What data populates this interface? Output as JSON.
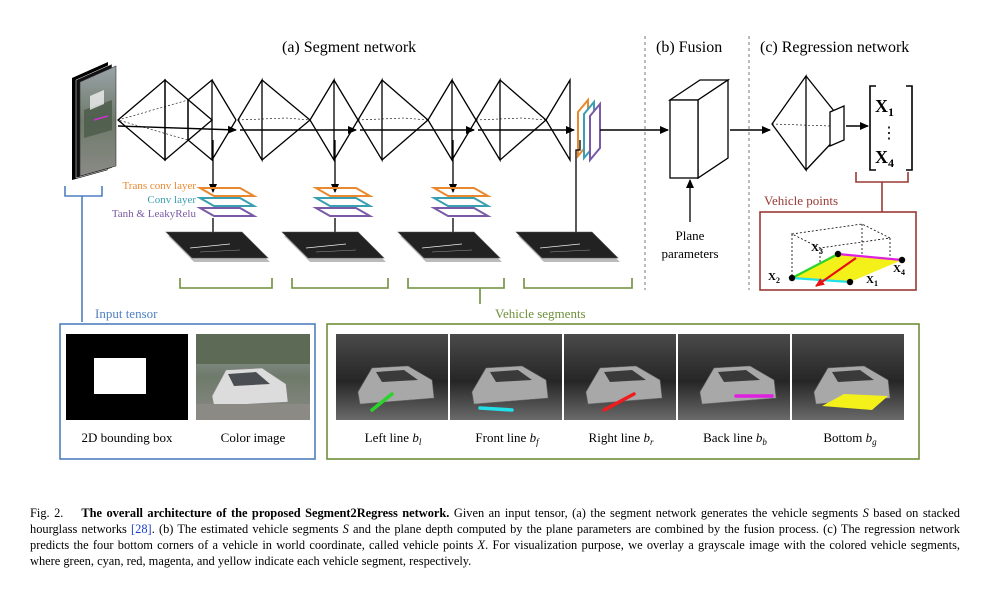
{
  "headers": {
    "segment": "(a) Segment network",
    "fusion": "(b) Fusion",
    "regression": "(c) Regression network"
  },
  "legend": {
    "trans_conv": "Trans conv layer",
    "conv": "Conv layer",
    "tanh": "Tanh & LeakyRelu"
  },
  "plane": {
    "line1": "Plane",
    "line2": "parameters"
  },
  "vehicle_points": {
    "title": "Vehicle points",
    "labels": [
      "X",
      "X",
      "X",
      "X"
    ],
    "subs": [
      "1",
      "2",
      "3",
      "4"
    ]
  },
  "matrix": {
    "top": "X",
    "top_sub": "1",
    "dots": "⋮",
    "bottom": "X",
    "bottom_sub": "4"
  },
  "input_tensor": {
    "title": "Input tensor",
    "bbox_label": "2D bounding box",
    "color_label": "Color image"
  },
  "vehicle_segments": {
    "title": "Vehicle segments",
    "items": [
      {
        "label": "Left line ",
        "sym": "b",
        "sub": "l",
        "color": "#2ad42a"
      },
      {
        "label": "Front line ",
        "sym": "b",
        "sub": "f",
        "color": "#22e0e8"
      },
      {
        "label": "Right line ",
        "sym": "b",
        "sub": "r",
        "color": "#ee1c1c"
      },
      {
        "label": "Back line ",
        "sym": "b",
        "sub": "b",
        "color": "#e020e0"
      },
      {
        "label": "Bottom ",
        "sym": "b",
        "sub": "g",
        "color": "#f4f01a"
      }
    ]
  },
  "colors": {
    "input_box": "#4f7fc0",
    "segments_box": "#6f8f3a",
    "vehicle_points_box": "#9a3a34",
    "trans": "#e8892f",
    "conv": "#3a9fb0",
    "tanh": "#7a5aa6",
    "citation": "#1a3fd0"
  },
  "caption": {
    "prefix": "Fig. 2.",
    "bold": "The overall architecture of the proposed Segment2Regress network.",
    "part1": " Given an input tensor, (a) the segment network generates the vehicle segments ",
    "sym1": "S",
    "part2": " based on stacked hourglass networks ",
    "cite": "[28]",
    "part3": ". (b) The estimated vehicle segments ",
    "sym2": "S",
    "part4": " and the plane depth computed by the plane parameters are combined by the fusion process. (c) The regression network predicts the four bottom corners of a vehicle in world coordinate, called vehicle points ",
    "sym3": "X",
    "part5": ". For visualization purpose, we overlay a grayscale image with the colored vehicle segments, where green, cyan, red, magenta, and yellow indicate each vehicle segment, respectively."
  }
}
